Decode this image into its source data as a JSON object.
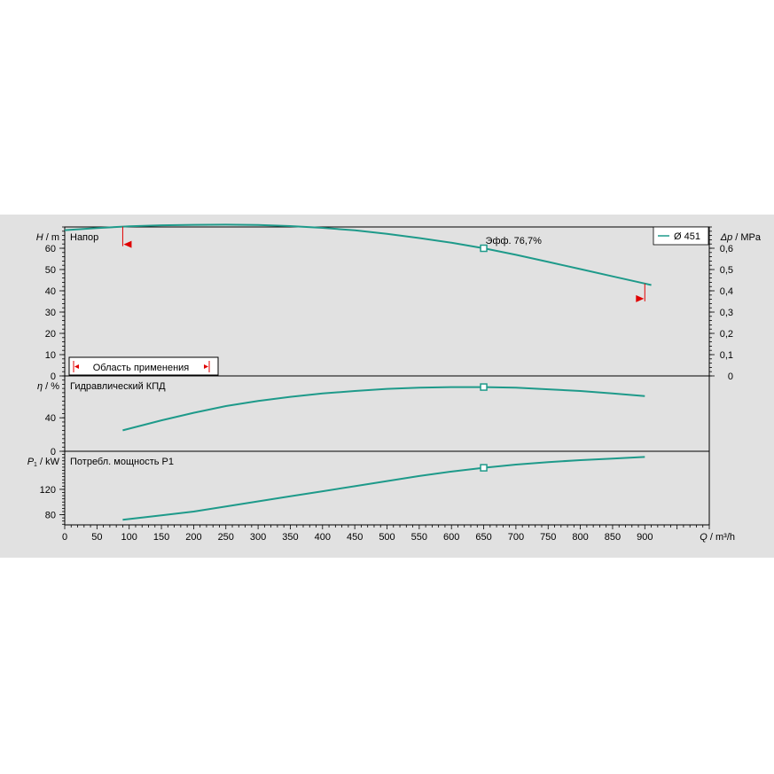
{
  "chart_data": [
    {
      "type": "line",
      "panel": "head",
      "y_label_sym": "H",
      "y_label_unit": " / m",
      "y2_label_sym": "Δp",
      "y2_label_unit": " / MPa",
      "title": "Напор",
      "ylim": [
        0,
        70
      ],
      "yticks": [
        0,
        10,
        20,
        30,
        40,
        50,
        60
      ],
      "y2lim": [
        0,
        0.7
      ],
      "y2ticks": [
        "0",
        "0,1",
        "0,2",
        "0,3",
        "0,4",
        "0,5",
        "0,6"
      ],
      "series": [
        {
          "name": "Ø 451",
          "x": [
            0,
            50,
            100,
            150,
            200,
            250,
            300,
            350,
            400,
            450,
            500,
            550,
            600,
            650,
            700,
            750,
            800,
            850,
            900,
            910
          ],
          "y": [
            68.5,
            69.5,
            70.3,
            70.8,
            71.0,
            71.1,
            70.9,
            70.4,
            69.6,
            68.4,
            66.8,
            64.8,
            62.6,
            60.0,
            56.9,
            53.6,
            50.2,
            46.8,
            43.4,
            42.7
          ]
        }
      ],
      "annotations": [
        {
          "x": 650,
          "y": 60.0,
          "text": "Эфф.  76,7%"
        }
      ],
      "range_label": "Область применения",
      "range": [
        90,
        900
      ]
    },
    {
      "type": "line",
      "panel": "efficiency",
      "y_label_sym": "η",
      "y_label_unit": " / %",
      "title": "Гидравлический КПД",
      "ylim": [
        0,
        90
      ],
      "yticks": [
        0,
        40
      ],
      "series": [
        {
          "name": "",
          "x": [
            90,
            150,
            200,
            250,
            300,
            350,
            400,
            450,
            500,
            550,
            600,
            650,
            700,
            750,
            800,
            850,
            900
          ],
          "y": [
            25,
            37,
            46,
            54,
            60,
            65,
            69,
            72,
            74.5,
            76,
            76.7,
            76.7,
            76,
            74,
            72,
            69,
            66
          ]
        }
      ],
      "marker": {
        "x": 650,
        "y": 76.7
      }
    },
    {
      "type": "line",
      "panel": "power",
      "y_label_sym": "P",
      "y_label_sub": "1",
      "y_label_unit": " / kW",
      "title": "Потребл. мощность P1",
      "ylim": [
        64,
        180
      ],
      "yticks": [
        80,
        120
      ],
      "series": [
        {
          "name": "",
          "x": [
            90,
            150,
            200,
            250,
            300,
            350,
            400,
            450,
            500,
            550,
            600,
            650,
            700,
            750,
            800,
            850,
            900
          ],
          "y": [
            72,
            79,
            85,
            93,
            101,
            109,
            117,
            125,
            133,
            141,
            148,
            154,
            159,
            163,
            166,
            168.5,
            171
          ]
        }
      ],
      "marker": {
        "x": 650,
        "y": 154
      }
    }
  ],
  "x_axis": {
    "label_sym": "Q",
    "label_unit": " / m³/h",
    "xlim": [
      0,
      1000
    ],
    "xticks": [
      "0",
      "50",
      "100",
      "150",
      "200",
      "250",
      "300",
      "350",
      "400",
      "450",
      "500",
      "550",
      "600",
      "650",
      "700",
      "750",
      "800",
      "850",
      "900"
    ]
  },
  "colors": {
    "curve": "#1e9a8a",
    "range": "#e00000",
    "grid": "#000000"
  }
}
